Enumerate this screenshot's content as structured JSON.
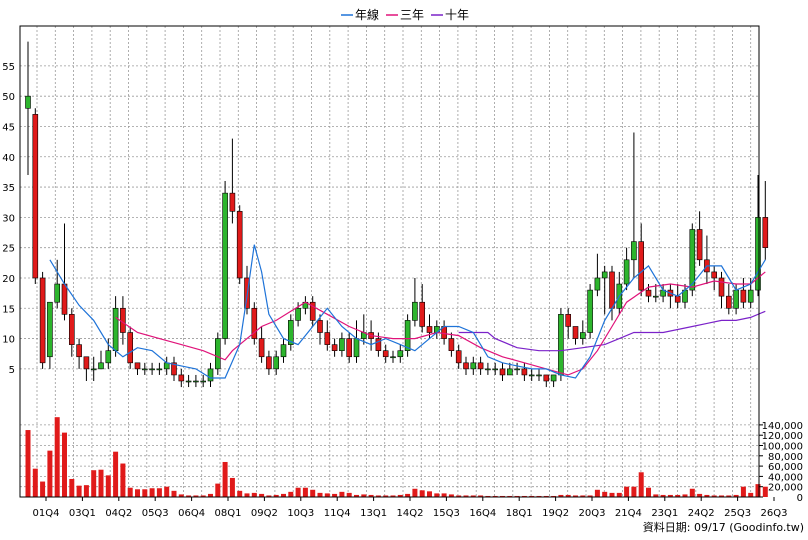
{
  "chart_data": {
    "type": "candlestick+volume",
    "legend": [
      "年線",
      "三年",
      "十年"
    ],
    "colors": {
      "年線": "#1e73d8",
      "三年": "#e0137a",
      "十年": "#7b22c9",
      "up": "#2db52d",
      "down": "#e01a1a",
      "volume": "#e01a1a",
      "grid": "#9a9a9a"
    },
    "price_axis": {
      "ticks": [
        5,
        10,
        15,
        20,
        25,
        30,
        35,
        40,
        45,
        50,
        55
      ]
    },
    "volume_axis": {
      "ticks": [
        "0",
        "20,000",
        "40,000",
        "60,000",
        "80,000",
        "100,000",
        "120,000",
        "140,000"
      ]
    },
    "x_labels": [
      "01Q4",
      "03Q1",
      "04Q2",
      "05Q3",
      "06Q4",
      "08Q1",
      "09Q2",
      "10Q3",
      "11Q4",
      "13Q1",
      "14Q2",
      "15Q3",
      "16Q4",
      "18Q1",
      "19Q2",
      "20Q3",
      "21Q4",
      "23Q1",
      "24Q2",
      "25Q3",
      "26Q3"
    ],
    "candles": [
      [
        48,
        50,
        59,
        37
      ],
      [
        47,
        20,
        48,
        19
      ],
      [
        20,
        6,
        21,
        5
      ],
      [
        7,
        16,
        16,
        5
      ],
      [
        16,
        19,
        23,
        15
      ],
      [
        19,
        14,
        29,
        13
      ],
      [
        14,
        9,
        15,
        7
      ],
      [
        9,
        7,
        10,
        5
      ],
      [
        7,
        5,
        7,
        3
      ],
      [
        5,
        5,
        7,
        3
      ],
      [
        5,
        6,
        8,
        5
      ],
      [
        6,
        8,
        10,
        5
      ],
      [
        8,
        15,
        17,
        7
      ],
      [
        15,
        11,
        17,
        9
      ],
      [
        11,
        6,
        12,
        5
      ],
      [
        6,
        5,
        6,
        4
      ],
      [
        5,
        5,
        6,
        4
      ],
      [
        5,
        5,
        6,
        4
      ],
      [
        5,
        5,
        6,
        4
      ],
      [
        5,
        6,
        7,
        4
      ],
      [
        6,
        4,
        7,
        3
      ],
      [
        4,
        3,
        5,
        2
      ],
      [
        3,
        3,
        4,
        2
      ],
      [
        3,
        3,
        4,
        2
      ],
      [
        3,
        3,
        4,
        2
      ],
      [
        3,
        5,
        6,
        2
      ],
      [
        5,
        10,
        11,
        4
      ],
      [
        10,
        34,
        36,
        9
      ],
      [
        34,
        31,
        43,
        29
      ],
      [
        31,
        20,
        32,
        19
      ],
      [
        20,
        15,
        22,
        14
      ],
      [
        15,
        10,
        16,
        9
      ],
      [
        10,
        7,
        12,
        6
      ],
      [
        7,
        5,
        8,
        4
      ],
      [
        5,
        7,
        8,
        4
      ],
      [
        7,
        9,
        10,
        6
      ],
      [
        9,
        13,
        14,
        8
      ],
      [
        13,
        15,
        16,
        12
      ],
      [
        15,
        16,
        17,
        14
      ],
      [
        16,
        13,
        17,
        12
      ],
      [
        13,
        11,
        14,
        9
      ],
      [
        11,
        9,
        13,
        8
      ],
      [
        9,
        8,
        10,
        7
      ],
      [
        8,
        10,
        11,
        7
      ],
      [
        10,
        7,
        11,
        6
      ],
      [
        7,
        10,
        13,
        6
      ],
      [
        10,
        11,
        14,
        9
      ],
      [
        11,
        10,
        13,
        8
      ],
      [
        10,
        8,
        11,
        7
      ],
      [
        8,
        7,
        9,
        6
      ],
      [
        7,
        7,
        8,
        6
      ],
      [
        7,
        8,
        9,
        6
      ],
      [
        8,
        13,
        14,
        7
      ],
      [
        13,
        16,
        20,
        12
      ],
      [
        16,
        12,
        19,
        11
      ],
      [
        12,
        11,
        14,
        10
      ],
      [
        11,
        12,
        13,
        10
      ],
      [
        12,
        10,
        13,
        9
      ],
      [
        10,
        8,
        11,
        7
      ],
      [
        8,
        6,
        9,
        5
      ],
      [
        6,
        5,
        7,
        4
      ],
      [
        5,
        6,
        7,
        4
      ],
      [
        6,
        5,
        7,
        4
      ],
      [
        5,
        5,
        6,
        4
      ],
      [
        5,
        5,
        6,
        4
      ],
      [
        5,
        4,
        6,
        3
      ],
      [
        4,
        5,
        6,
        4
      ],
      [
        5,
        5,
        6,
        4
      ],
      [
        5,
        4,
        6,
        3
      ],
      [
        4,
        4,
        5,
        3
      ],
      [
        4,
        4,
        5,
        3
      ],
      [
        4,
        3,
        4,
        2
      ],
      [
        3,
        4,
        4,
        2
      ],
      [
        4,
        14,
        15,
        3
      ],
      [
        14,
        12,
        15,
        10
      ],
      [
        12,
        10,
        12,
        9
      ],
      [
        10,
        11,
        13,
        9
      ],
      [
        11,
        18,
        19,
        10
      ],
      [
        18,
        20,
        24,
        17
      ],
      [
        20,
        21,
        22,
        14
      ],
      [
        21,
        15,
        22,
        13
      ],
      [
        15,
        19,
        21,
        14
      ],
      [
        19,
        23,
        25,
        18
      ],
      [
        23,
        26,
        44,
        20
      ],
      [
        26,
        18,
        29,
        17
      ],
      [
        18,
        17,
        19,
        16
      ],
      [
        17,
        17,
        19,
        16
      ],
      [
        17,
        18,
        19,
        16
      ],
      [
        18,
        17,
        19,
        15
      ],
      [
        17,
        16,
        19,
        15
      ],
      [
        16,
        18,
        19,
        15
      ],
      [
        18,
        28,
        29,
        17
      ],
      [
        28,
        23,
        31,
        22
      ],
      [
        23,
        21,
        27,
        19
      ],
      [
        21,
        20,
        22,
        18
      ],
      [
        20,
        17,
        21,
        15
      ],
      [
        17,
        15,
        19,
        14
      ],
      [
        15,
        18,
        19,
        14
      ],
      [
        18,
        16,
        20,
        15
      ],
      [
        16,
        18,
        20,
        15
      ],
      [
        18,
        30,
        37,
        17
      ],
      [
        30,
        25,
        36,
        23
      ]
    ],
    "volume": [
      130000,
      55000,
      30000,
      90000,
      155000,
      125000,
      35000,
      22000,
      23000,
      52000,
      53000,
      42000,
      88000,
      65000,
      18000,
      15000,
      15000,
      17000,
      17000,
      20000,
      12000,
      5000,
      3000,
      3000,
      3000,
      6000,
      26000,
      68000,
      37000,
      12000,
      7000,
      8000,
      6000,
      3000,
      4000,
      6000,
      10000,
      18000,
      18000,
      14000,
      8000,
      7000,
      6000,
      10000,
      8000,
      4000,
      5000,
      4000,
      3000,
      3000,
      3000,
      4000,
      6000,
      16000,
      13000,
      11000,
      7000,
      7000,
      5000,
      3000,
      3000,
      3000,
      3000,
      2000,
      2000,
      2000,
      2000,
      2000,
      2000,
      2000,
      2000,
      2000,
      2000,
      4000,
      4000,
      3000,
      3000,
      3000,
      14000,
      10000,
      8000,
      8000,
      20000,
      20000,
      48000,
      18000,
      5000,
      4000,
      4000,
      4000,
      5000,
      16000,
      6000,
      4000,
      3000,
      3000,
      3000,
      4000,
      20000,
      8000,
      25000,
      20000
    ],
    "ma_year": [
      [
        3,
        23
      ],
      [
        5,
        19
      ],
      [
        7,
        15.5
      ],
      [
        9,
        13
      ],
      [
        11,
        9
      ],
      [
        13,
        7
      ],
      [
        15,
        8.5
      ],
      [
        17,
        8
      ],
      [
        19,
        6
      ],
      [
        21,
        5.5
      ],
      [
        23,
        5
      ],
      [
        25,
        3.5
      ],
      [
        27,
        3.5
      ],
      [
        29,
        9
      ],
      [
        30,
        17
      ],
      [
        31,
        25.5
      ],
      [
        32,
        21
      ],
      [
        33,
        14
      ],
      [
        35,
        10
      ],
      [
        37,
        9
      ],
      [
        39,
        12
      ],
      [
        41,
        15
      ],
      [
        43,
        12
      ],
      [
        45,
        10
      ],
      [
        47,
        9
      ],
      [
        49,
        10
      ],
      [
        51,
        9
      ],
      [
        53,
        8
      ],
      [
        55,
        10
      ],
      [
        57,
        12
      ],
      [
        59,
        12
      ],
      [
        61,
        11
      ],
      [
        63,
        7
      ],
      [
        65,
        6
      ],
      [
        67,
        5.5
      ],
      [
        69,
        5
      ],
      [
        71,
        5
      ],
      [
        73,
        4
      ],
      [
        75,
        3.5
      ],
      [
        77,
        7
      ],
      [
        79,
        13
      ],
      [
        81,
        17
      ],
      [
        83,
        20
      ],
      [
        85,
        22
      ],
      [
        87,
        18
      ],
      [
        89,
        17
      ],
      [
        91,
        19
      ],
      [
        93,
        22
      ],
      [
        95,
        22
      ],
      [
        97,
        18
      ],
      [
        99,
        19
      ],
      [
        101,
        23
      ]
    ],
    "ma_3y": [
      [
        12,
        13.5
      ],
      [
        15,
        11
      ],
      [
        18,
        10
      ],
      [
        21,
        9
      ],
      [
        24,
        8
      ],
      [
        27,
        6.5
      ],
      [
        28,
        8
      ],
      [
        30,
        10
      ],
      [
        32,
        12
      ],
      [
        34,
        13
      ],
      [
        36,
        14.5
      ],
      [
        38,
        16
      ],
      [
        41,
        14
      ],
      [
        44,
        12
      ],
      [
        47,
        10.5
      ],
      [
        50,
        10
      ],
      [
        53,
        10
      ],
      [
        56,
        11
      ],
      [
        59,
        10.5
      ],
      [
        62,
        8.5
      ],
      [
        65,
        7
      ],
      [
        68,
        6
      ],
      [
        71,
        5
      ],
      [
        74,
        4
      ],
      [
        76,
        5
      ],
      [
        78,
        8
      ],
      [
        80,
        12
      ],
      [
        82,
        16
      ],
      [
        85,
        18.5
      ],
      [
        88,
        19
      ],
      [
        91,
        18.5
      ],
      [
        94,
        19.5
      ],
      [
        97,
        19
      ],
      [
        99,
        19
      ],
      [
        101,
        21
      ]
    ],
    "ma_10y": [
      [
        59,
        11
      ],
      [
        62,
        11
      ],
      [
        63,
        11
      ],
      [
        64,
        10
      ],
      [
        67,
        8.5
      ],
      [
        70,
        8
      ],
      [
        73,
        8
      ],
      [
        76,
        8.5
      ],
      [
        79,
        9
      ],
      [
        81,
        10
      ],
      [
        83,
        11
      ],
      [
        85,
        11
      ],
      [
        87,
        11
      ],
      [
        89,
        11.5
      ],
      [
        91,
        12
      ],
      [
        93,
        12.5
      ],
      [
        95,
        13
      ],
      [
        97,
        13
      ],
      [
        99,
        13.5
      ],
      [
        101,
        14.5
      ]
    ],
    "footer": "資料日期: 09/17  (Goodinfo.tw)"
  }
}
